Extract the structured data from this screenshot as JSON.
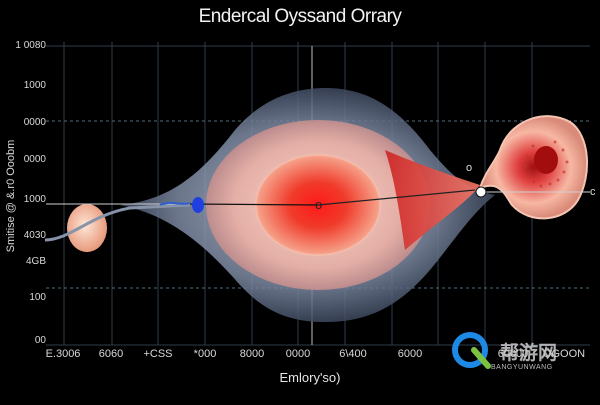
{
  "title": "Endercal Oyssand Orrary",
  "y_axis": {
    "label": "Smitise @ &.r0 Ooobm",
    "ticks": [
      "1 0080",
      "1000",
      "0000",
      "0000",
      "1000",
      "4030",
      "4GB",
      "100",
      "00"
    ]
  },
  "x_axis": {
    "label": "Emlory'so)",
    "ticks": [
      "E.3006",
      "6060",
      "+CSS",
      "*000",
      "8000",
      "0000",
      "6\\400",
      "6000",
      "60000",
      "OGOON"
    ]
  },
  "center_label": "o",
  "right_callouts": [
    "o",
    "c"
  ],
  "watermark": {
    "text": "帮游网",
    "sub": "BANGYUNWANG"
  },
  "colors": {
    "background": "#000000",
    "grid": "#3a4a5a",
    "core": "#e82020",
    "accent_blue": "#2040ff",
    "watermark_blue": "#1e88e5",
    "watermark_green": "#7cc242"
  }
}
